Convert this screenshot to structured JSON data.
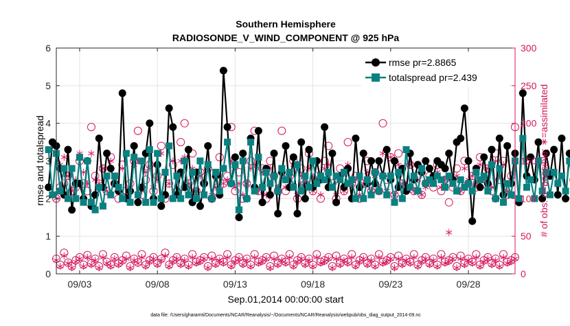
{
  "chart_data": {
    "type": "line",
    "title": "Southern Hemisphere",
    "subtitle": "RADIOSONDE_V_WIND_COMPONENT @ 925 hPa",
    "xlabel": "Sep.01,2014 00:00:00 start",
    "ylabel_left": "rmse and totalspread",
    "ylabel_right": "# of obs: o=possible; ∗=assimilated",
    "footnote": "data file: /Users/gharamti/Documents/NCAR/Reanalysis/~/Documents/NCAR/Reanalysis/webpub/obs_diag_output_2014-09.nc",
    "x_start_day": 1,
    "x_step_days": 0.25,
    "xlim": [
      1.5,
      31.0
    ],
    "ylim_left": [
      0,
      6
    ],
    "ylim_right": [
      0,
      300
    ],
    "grid": true,
    "legend_position": "top-right",
    "x_tick_labels": [
      "09/03",
      "09/08",
      "09/13",
      "09/18",
      "09/23",
      "09/28"
    ],
    "x_tick_values": [
      3,
      8,
      13,
      18,
      23,
      28
    ],
    "y_left_ticks": [
      0,
      1,
      2,
      3,
      4,
      5,
      6
    ],
    "y_right_ticks": [
      0,
      50,
      100,
      150,
      200,
      250,
      300
    ],
    "colors": {
      "rmse": "#000000",
      "totalspread": "#0b8080",
      "obs": "#d4155e",
      "grid": "#e3e3e3",
      "axis": "#262626"
    },
    "series": [
      {
        "name": "rmse pr=2.8865",
        "axis": "left",
        "values": [
          2.3,
          3.5,
          3.4,
          2.8,
          2.1,
          3.3,
          1.7,
          2.4,
          2.4,
          2.0,
          3.0,
          1.8,
          2.1,
          3.6,
          2.3,
          3.2,
          2.8,
          2.4,
          2.2,
          4.8,
          2.0,
          2.2,
          3.4,
          1.9,
          2.3,
          3.2,
          4.0,
          2.0,
          2.9,
          1.8,
          2.1,
          4.4,
          3.9,
          2.1,
          2.7,
          2.3,
          3.3,
          1.9,
          2.7,
          1.8,
          2.4,
          3.4,
          2.0,
          2.6,
          2.1,
          5.4,
          3.9,
          2.4,
          3.1,
          1.5,
          3.2,
          2.0,
          3.6,
          2.3,
          3.8,
          1.9,
          2.8,
          2.1,
          3.2,
          1.6,
          2.7,
          3.4,
          2.3,
          3.1,
          1.6,
          3.5,
          2.0,
          3.3,
          2.3,
          3.0,
          2.5,
          3.9,
          2.3,
          3.2,
          1.9,
          2.6,
          2.3,
          2.8,
          2.0,
          3.6,
          2.3,
          3.2,
          2.4,
          3.0,
          2.4,
          3.0,
          2.6,
          3.3,
          2.5,
          3.0,
          2.3,
          2.8,
          2.2,
          3.2,
          2.5,
          2.9,
          2.7,
          3.0,
          2.8,
          2.6,
          3.0,
          2.9,
          2.8,
          3.2,
          2.5,
          3.5,
          3.6,
          4.4,
          3.0,
          1.4,
          2.8,
          2.3,
          3.1,
          2.4,
          3.3,
          2.0,
          3.6,
          2.1,
          3.4,
          2.4,
          3.2,
          1.9,
          4.8,
          2.6,
          3.1,
          2.5,
          3.5,
          2.0,
          3.2,
          2.6,
          3.3,
          2.1,
          3.6,
          2.0,
          3.2,
          2.5,
          3.1,
          2.1,
          3.8,
          2.2,
          3.4,
          2.5,
          3.4,
          1.8,
          3.2,
          2.1,
          3.4,
          1.8,
          2.5,
          3.0,
          3.4,
          2.1,
          3.4,
          3.1
        ]
      },
      {
        "name": "totalspread pr=2.439",
        "axis": "left",
        "values": [
          3.3,
          2.1,
          3.2,
          2.2,
          2.8,
          2.0,
          2.8,
          2.0,
          3.1,
          1.9,
          3.0,
          1.9,
          1.7,
          2.3,
          1.8,
          2.6,
          2.1,
          2.6,
          2.3,
          2.0,
          3.2,
          1.9,
          3.1,
          2.1,
          3.0,
          1.9,
          3.3,
          1.9,
          3.2,
          2.0,
          2.7,
          3.4,
          2.0,
          2.6,
          2.0,
          3.0,
          2.1,
          2.7,
          2.0,
          3.0,
          2.1,
          2.9,
          2.0,
          2.7,
          2.2,
          2.8,
          3.5,
          2.4,
          2.9,
          1.7,
          3.0,
          2.0,
          3.5,
          2.2,
          3.1,
          2.3,
          2.7,
          2.4,
          2.6,
          2.2,
          2.8,
          2.5,
          2.7,
          2.3,
          2.9,
          2.2,
          2.6,
          2.3,
          3.0,
          2.4,
          2.6,
          2.5,
          2.7,
          2.3,
          2.6,
          2.5,
          2.7,
          2.4,
          2.5,
          2.0,
          2.6,
          2.0,
          2.5,
          2.1,
          2.7,
          2.2,
          2.6,
          2.1,
          2.6,
          1.9,
          2.7,
          2.0,
          3.3,
          2.3,
          2.6,
          2.2,
          2.8,
          2.4,
          2.5,
          2.4,
          2.6,
          2.5,
          2.3,
          2.6,
          2.4,
          2.2,
          2.5,
          2.3,
          2.4,
          2.2,
          2.7,
          2.5,
          2.6,
          2.2,
          2.9,
          2.0,
          2.8,
          1.9,
          2.4,
          2.1,
          3.0,
          2.0,
          3.6,
          2.3,
          2.5,
          2.0,
          3.0,
          2.2,
          2.7,
          2.1,
          2.7,
          2.4,
          2.6,
          2.2,
          3.0,
          2.4,
          3.0,
          2.2,
          3.7,
          2.3,
          2.9,
          2.1,
          3.0,
          2.1,
          2.7,
          2.4,
          2.9,
          2.0,
          2.7,
          2.2,
          3.6,
          2.1,
          3.0,
          1.9
        ]
      },
      {
        "name": "# obs possible",
        "axis": "right",
        "marker": "circle",
        "values": [
          200,
          120,
          100,
          115,
          120,
          130,
          110,
          115,
          150,
          120,
          110,
          195,
          130,
          120,
          140,
          110,
          155,
          120,
          100,
          145,
          110,
          120,
          150,
          190,
          105,
          125,
          145,
          110,
          130,
          170,
          100,
          120,
          145,
          110,
          175,
          200,
          120,
          160,
          110,
          135,
          120,
          140,
          100,
          110,
          155,
          120,
          130,
          195,
          110,
          135,
          100,
          120,
          150,
          190,
          110,
          140,
          100,
          150,
          130,
          110,
          190,
          110,
          130,
          150,
          100,
          140,
          120,
          160,
          110,
          130,
          100,
          150,
          170,
          120,
          100,
          140,
          110,
          175,
          120,
          130,
          100,
          120,
          150,
          110,
          135,
          110,
          200,
          125,
          155,
          105,
          160,
          120,
          115,
          145,
          110,
          130,
          105,
          120,
          130,
          115,
          145,
          110,
          125,
          95,
          115,
          140,
          110,
          150,
          120,
          130,
          115,
          155,
          120,
          140,
          110,
          160,
          125,
          150,
          105,
          130,
          195,
          120,
          165,
          110,
          135,
          195,
          120,
          145,
          100,
          150,
          110,
          160,
          130,
          140,
          110,
          150,
          125,
          145,
          110,
          190,
          120,
          130,
          155,
          110,
          140,
          105,
          175,
          120,
          195,
          110,
          135,
          115,
          145,
          105,
          120
        ]
      },
      {
        "name": "# obs assimilated",
        "axis": "right",
        "marker": "star",
        "values": [
          160,
          120,
          100,
          145,
          155,
          130,
          110,
          125,
          160,
          135,
          120,
          160,
          125,
          120,
          140,
          110,
          150,
          130,
          115,
          140,
          105,
          110,
          145,
          150,
          110,
          135,
          140,
          115,
          125,
          160,
          105,
          120,
          150,
          115,
          150,
          155,
          120,
          140,
          110,
          130,
          125,
          140,
          105,
          115,
          130,
          120,
          125,
          150,
          115,
          120,
          105,
          120,
          140,
          145,
          110,
          135,
          105,
          140,
          130,
          115,
          140,
          115,
          125,
          145,
          105,
          130,
          120,
          140,
          110,
          125,
          105,
          140,
          145,
          115,
          105,
          130,
          110,
          145,
          120,
          125,
          105,
          120,
          135,
          110,
          130,
          115,
          160,
          110,
          155,
          105,
          145,
          120,
          115,
          145,
          110,
          125,
          105,
          115,
          125,
          125,
          135,
          115,
          125,
          55,
          120,
          130,
          110,
          140,
          125,
          130,
          120,
          145,
          125,
          140,
          115,
          150,
          130,
          145,
          110,
          125,
          150,
          120,
          140,
          115,
          130,
          145,
          120,
          135,
          110,
          140,
          115,
          145,
          125,
          130,
          115,
          140,
          130,
          140,
          115,
          155,
          120,
          125,
          135,
          115,
          130,
          110,
          140,
          120,
          145,
          115,
          130,
          120,
          140,
          110,
          120
        ]
      },
      {
        "name": "# obs possible (low)",
        "axis": "right",
        "marker": "circle",
        "values": [
          25,
          15,
          20,
          12,
          28,
          15,
          10,
          18,
          22,
          12,
          25,
          14,
          20,
          10,
          26,
          16,
          12,
          22,
          14,
          18,
          24,
          10,
          20,
          15,
          26,
          12,
          18,
          22,
          14,
          20,
          28,
          12,
          18,
          22,
          14,
          20,
          12,
          26,
          16,
          18,
          22,
          10,
          24,
          14,
          20,
          16,
          26,
          12,
          18,
          22,
          14,
          20,
          12,
          26,
          16,
          18,
          22,
          10,
          24,
          14,
          20,
          16,
          26,
          12,
          18,
          22,
          14,
          20,
          12,
          26,
          16,
          18,
          22,
          10,
          24,
          14,
          20,
          16,
          26,
          12,
          18,
          22,
          14,
          20,
          12,
          26,
          16,
          18,
          22,
          10,
          24,
          14,
          20,
          16,
          26,
          12,
          18,
          22,
          14,
          20,
          12,
          26,
          16,
          18,
          22,
          10,
          24,
          14,
          20,
          16,
          26,
          12,
          18,
          22,
          14,
          20,
          12,
          26,
          16,
          18,
          22,
          10,
          24,
          14,
          20,
          16,
          26,
          12,
          18,
          22,
          14,
          20,
          12,
          26,
          16,
          18,
          22,
          10,
          24,
          14,
          20,
          16,
          26,
          12,
          18,
          22,
          14,
          20,
          12,
          26,
          16,
          18,
          22,
          10,
          15,
          0
        ]
      },
      {
        "name": "# obs assimilated (low)",
        "axis": "right",
        "marker": "star",
        "values": [
          22,
          14,
          18,
          10,
          24,
          14,
          8,
          16,
          20,
          10,
          22,
          12,
          18,
          8,
          22,
          14,
          10,
          20,
          12,
          16,
          20,
          8,
          18,
          14,
          22,
          10,
          16,
          20,
          12,
          18,
          24,
          10,
          16,
          20,
          12,
          18,
          10,
          22,
          14,
          16,
          20,
          8,
          20,
          12,
          18,
          14,
          22,
          10,
          16,
          20,
          12,
          18,
          10,
          22,
          14,
          16,
          20,
          8,
          20,
          12,
          18,
          14,
          22,
          10,
          16,
          20,
          12,
          18,
          10,
          22,
          14,
          16,
          20,
          8,
          20,
          12,
          18,
          14,
          22,
          10,
          16,
          20,
          12,
          18,
          10,
          22,
          14,
          16,
          20,
          8,
          20,
          12,
          18,
          14,
          22,
          10,
          16,
          20,
          12,
          18,
          10,
          22,
          14,
          16,
          20,
          8,
          20,
          12,
          18,
          14,
          22,
          10,
          16,
          20,
          12,
          18,
          10,
          22,
          14,
          16,
          20,
          8,
          20,
          12,
          18,
          14,
          22,
          10,
          16,
          20,
          12,
          18,
          10,
          22,
          14,
          16,
          20,
          8,
          20,
          12,
          18,
          14,
          22,
          10,
          16,
          20,
          12,
          18,
          10,
          22,
          14,
          16,
          20,
          8,
          12,
          0
        ]
      }
    ],
    "legend": [
      {
        "label": "rmse pr=2.8865",
        "series": 0
      },
      {
        "label": "totalspread pr=2.439",
        "series": 1
      }
    ]
  }
}
